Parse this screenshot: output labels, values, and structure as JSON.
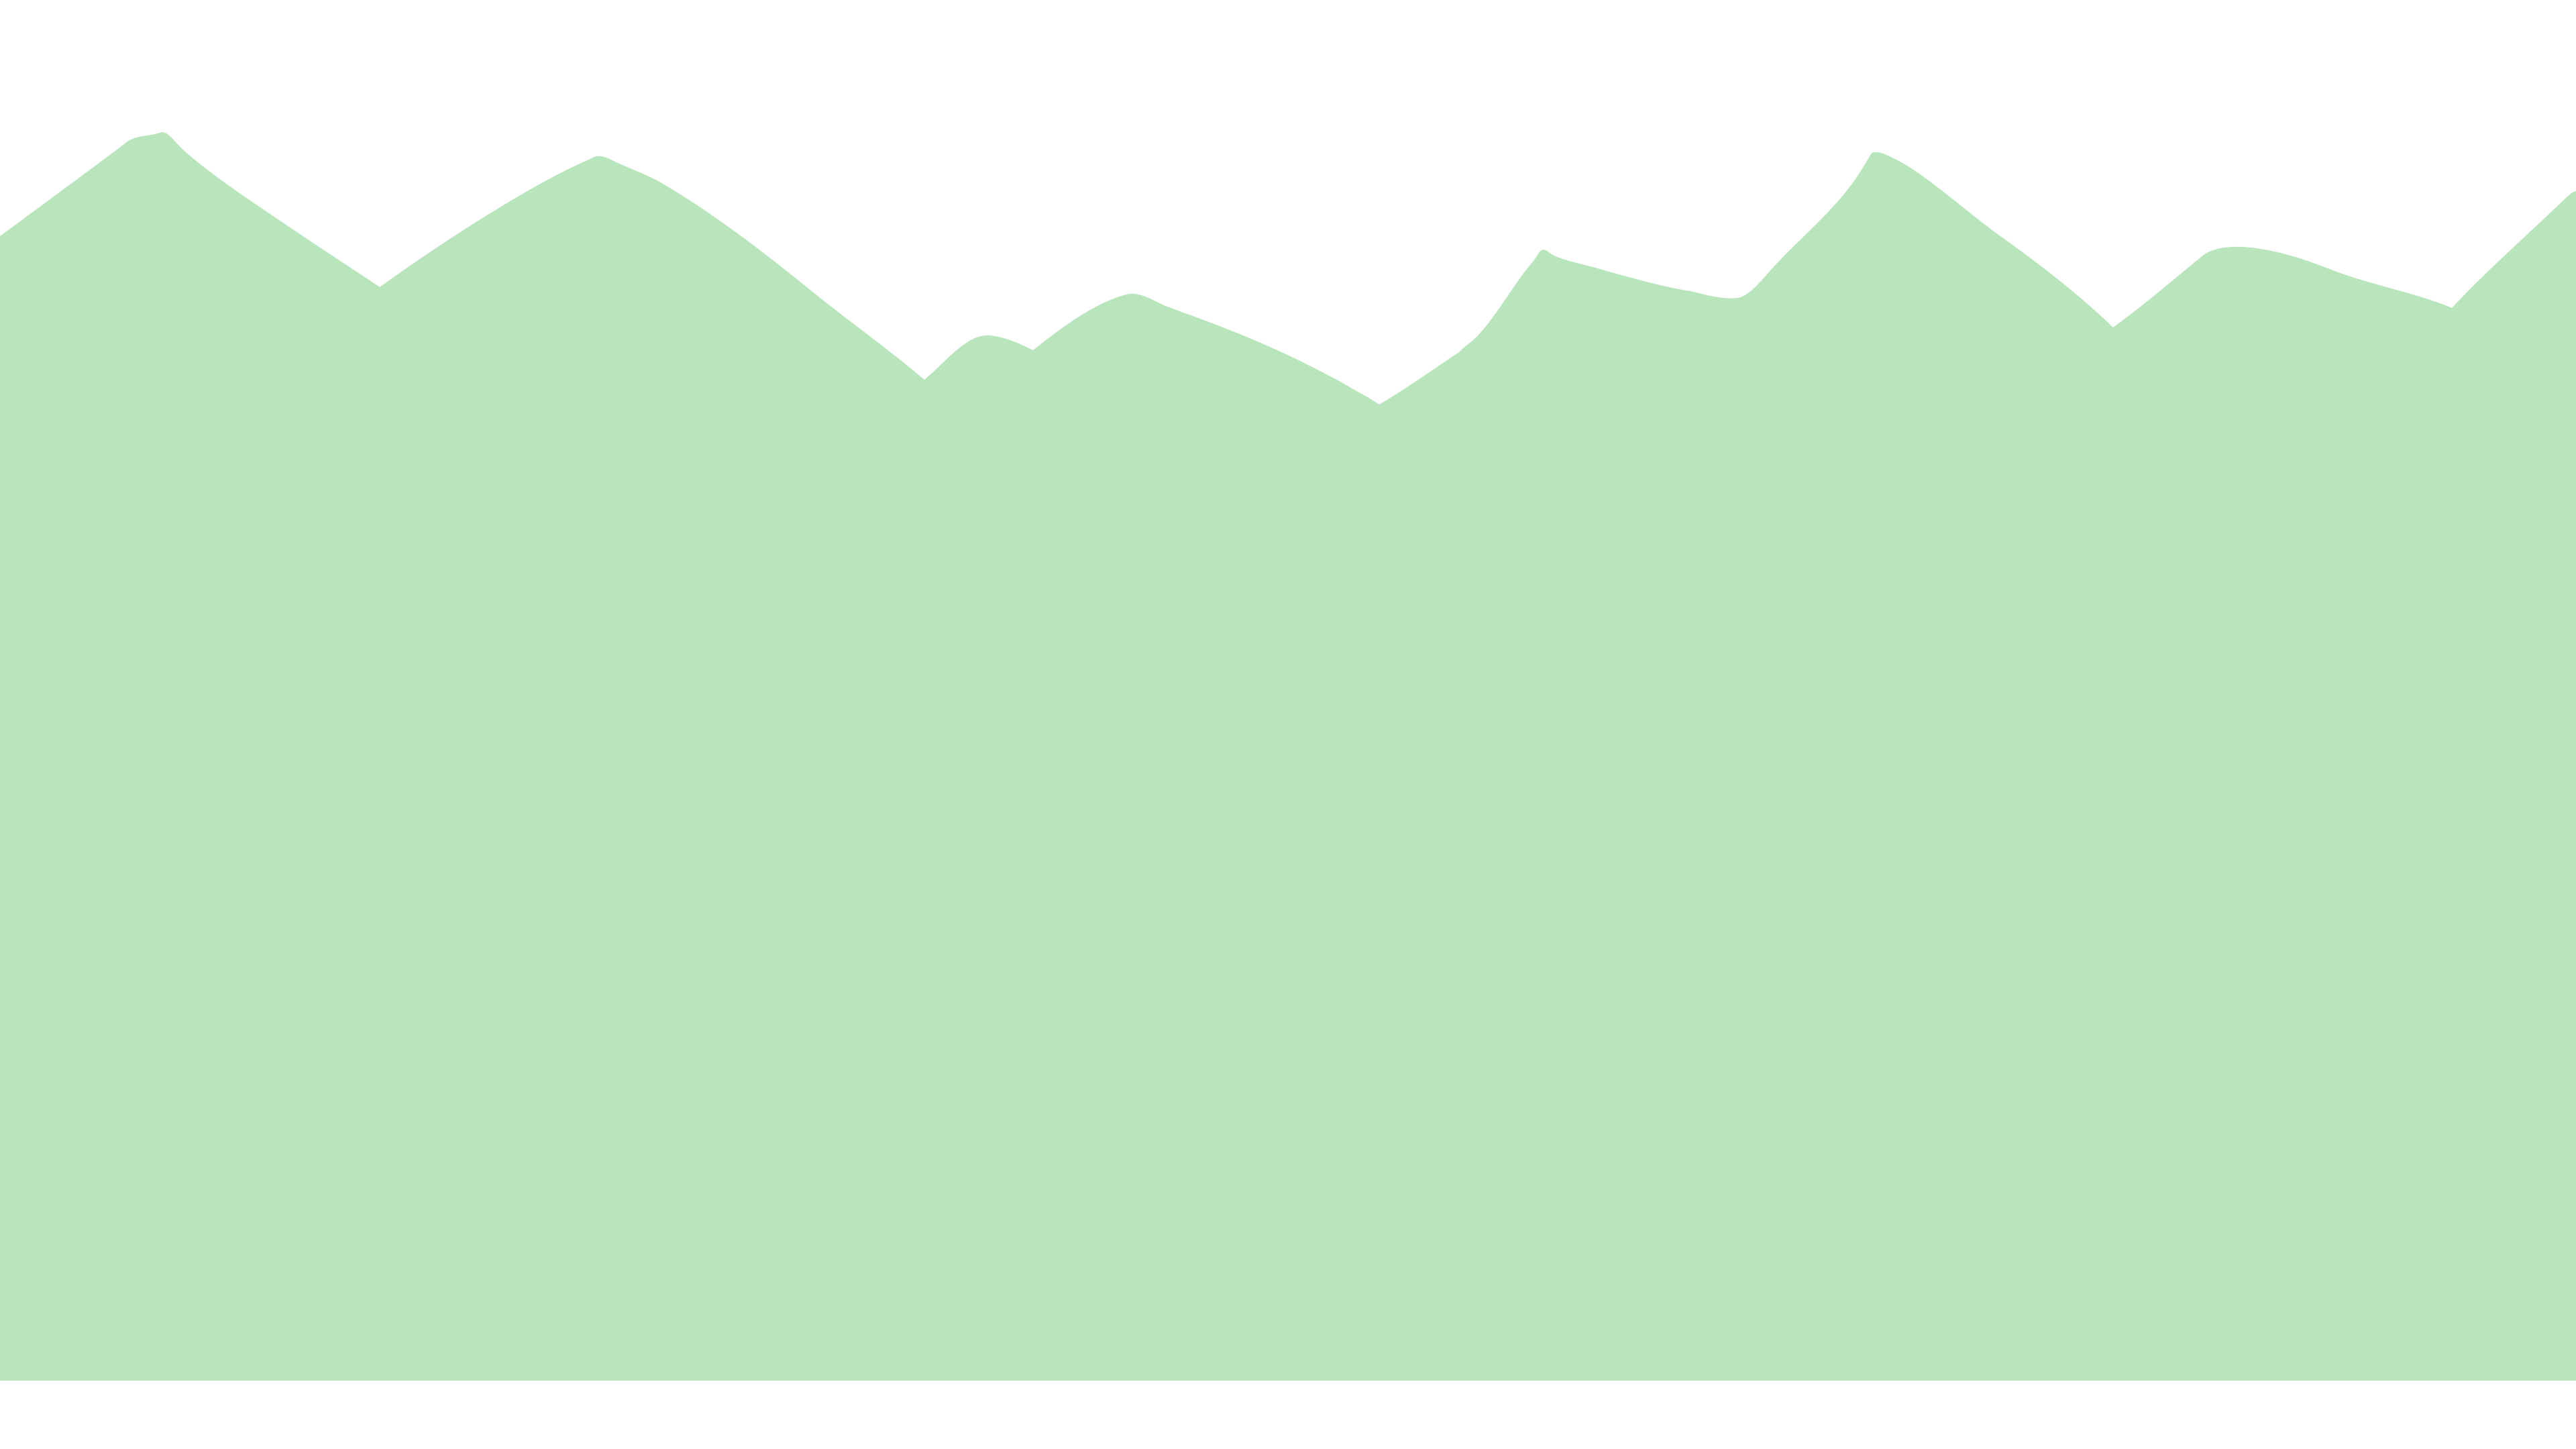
{
  "scene": {
    "background_color": "#ffffff",
    "fill_color": "#b9e5bc",
    "shape_icon": "mountain-range-icon"
  }
}
